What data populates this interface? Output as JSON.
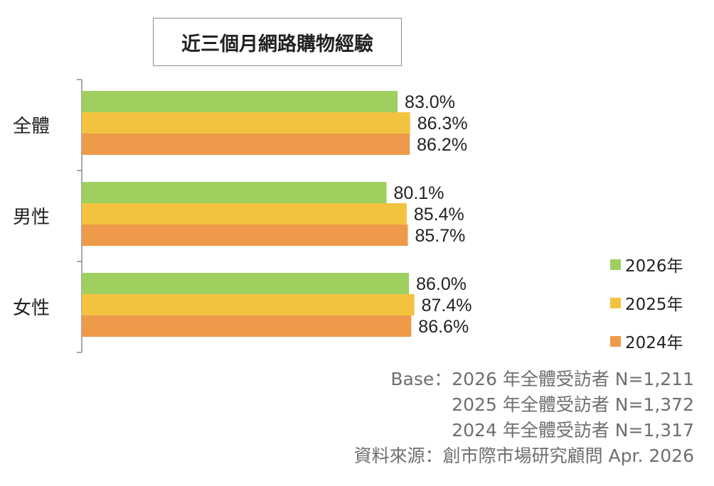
{
  "chart_data": {
    "type": "bar",
    "orientation": "horizontal",
    "title": "近三個月網路購物經驗",
    "categories": [
      "全體",
      "男性",
      "女性"
    ],
    "series": [
      {
        "name": "2026年",
        "color": "#9ecf5f",
        "values": [
          83.0,
          80.1,
          86.0
        ],
        "labels": [
          "83.0%",
          "80.1%",
          "86.0%"
        ]
      },
      {
        "name": "2025年",
        "color": "#f3c33f",
        "values": [
          86.3,
          85.4,
          87.4
        ],
        "labels": [
          "86.3%",
          "85.4%",
          "87.4%"
        ]
      },
      {
        "name": "2024年",
        "color": "#ee9a4a",
        "values": [
          86.2,
          85.7,
          86.6
        ],
        "labels": [
          "86.2%",
          "85.7%",
          "86.6%"
        ]
      }
    ],
    "value_unit": "%",
    "xlim": [
      0,
      100
    ],
    "grid": false,
    "legend_position": "right"
  },
  "footnotes": {
    "base_2026": "Base：2026 年全體受訪者 N=1,211",
    "base_2025": "2025 年全體受訪者 N=1,372",
    "base_2024": "2024 年全體受訪者 N=1,317",
    "source": "資料來源：創市際市場研究顧問 Apr. 2026"
  }
}
